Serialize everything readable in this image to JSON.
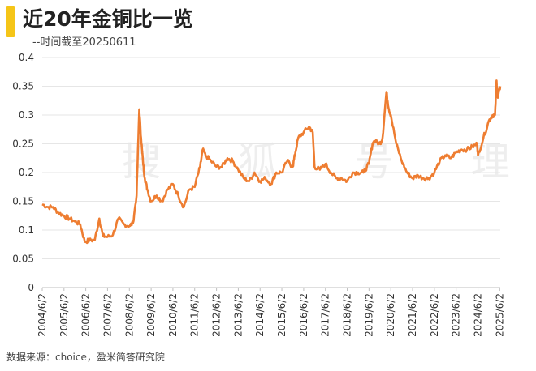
{
  "title": "近20年金铜比一览",
  "subtitle": "--时间截至20250611",
  "source": "数据来源：choice，盈米简答研究院",
  "watermark": "搜 狐 号 理",
  "colors": {
    "line": "#ee7d31",
    "accent": "#f5c518",
    "grid": "#e6e6e6"
  },
  "chart_data": {
    "type": "line",
    "title": "近20年金铜比一览",
    "xlabel": "",
    "ylabel": "",
    "ylim": [
      0,
      0.4
    ],
    "yticks": [
      0,
      0.05,
      0.1,
      0.15,
      0.2,
      0.25,
      0.3,
      0.35,
      0.4
    ],
    "ytick_labels": [
      "0",
      "0.05",
      "0.1",
      "0.15",
      "0.2",
      "0.25",
      "0.3",
      "0.35",
      "0.4"
    ],
    "xtick_labels": [
      "2004/6/2",
      "2005/6/2",
      "2006/6/2",
      "2007/6/2",
      "2008/6/2",
      "2009/6/2",
      "2010/6/2",
      "2011/6/2",
      "2012/6/2",
      "2013/6/2",
      "2014/6/2",
      "2015/6/2",
      "2016/6/2",
      "2017/6/2",
      "2018/6/2",
      "2019/6/2",
      "2020/6/2",
      "2021/6/2",
      "2022/6/2",
      "2023/6/2",
      "2024/6/2",
      "2025/6/2"
    ],
    "grid": true,
    "series": [
      {
        "x": [
          "2004-06-02",
          "2004-09-01",
          "2004-12-01",
          "2005-03-01",
          "2005-06-01",
          "2005-09-01",
          "2005-12-01",
          "2006-03-01",
          "2006-05-15",
          "2006-08-01",
          "2006-11-01",
          "2007-01-15",
          "2007-03-15",
          "2007-06-01",
          "2007-09-01",
          "2007-12-01",
          "2008-03-01",
          "2008-06-01",
          "2008-08-01",
          "2008-10-01",
          "2008-11-15",
          "2008-12-15",
          "2009-01-15",
          "2009-02-15",
          "2009-04-01",
          "2009-06-01",
          "2009-09-01",
          "2009-12-01",
          "2010-03-01",
          "2010-06-01",
          "2010-09-01",
          "2010-12-01",
          "2011-03-01",
          "2011-06-01",
          "2011-09-01",
          "2011-10-15",
          "2011-12-01",
          "2012-03-01",
          "2012-06-01",
          "2012-09-01",
          "2012-12-01",
          "2013-03-01",
          "2013-06-01",
          "2013-09-01",
          "2013-12-01",
          "2014-03-01",
          "2014-06-01",
          "2014-09-01",
          "2014-12-01",
          "2015-03-01",
          "2015-06-01",
          "2015-09-01",
          "2015-12-01",
          "2016-01-15",
          "2016-03-01",
          "2016-06-01",
          "2016-09-01",
          "2016-11-01",
          "2016-12-01",
          "2017-03-01",
          "2017-06-01",
          "2017-09-01",
          "2017-12-01",
          "2018-03-01",
          "2018-06-01",
          "2018-09-01",
          "2018-12-01",
          "2019-03-01",
          "2019-06-01",
          "2019-08-01",
          "2019-09-01",
          "2019-12-01",
          "2020-01-15",
          "2020-03-20",
          "2020-05-01",
          "2020-06-01",
          "2020-09-01",
          "2020-12-01",
          "2021-03-01",
          "2021-06-01",
          "2021-09-01",
          "2021-12-01",
          "2022-03-01",
          "2022-06-01",
          "2022-09-01",
          "2022-12-01",
          "2023-03-01",
          "2023-06-01",
          "2023-09-01",
          "2023-12-01",
          "2024-03-01",
          "2024-05-20",
          "2024-06-01",
          "2024-09-01",
          "2024-12-01",
          "2025-02-01",
          "2025-03-15",
          "2025-04-10",
          "2025-05-01",
          "2025-06-11"
        ],
        "values": [
          0.145,
          0.14,
          0.14,
          0.13,
          0.125,
          0.12,
          0.115,
          0.11,
          0.08,
          0.082,
          0.083,
          0.12,
          0.09,
          0.088,
          0.092,
          0.12,
          0.11,
          0.107,
          0.112,
          0.16,
          0.31,
          0.26,
          0.22,
          0.19,
          0.17,
          0.15,
          0.16,
          0.15,
          0.17,
          0.18,
          0.16,
          0.14,
          0.17,
          0.175,
          0.21,
          0.24,
          0.23,
          0.22,
          0.21,
          0.21,
          0.225,
          0.22,
          0.205,
          0.19,
          0.185,
          0.2,
          0.185,
          0.19,
          0.18,
          0.2,
          0.2,
          0.22,
          0.21,
          0.235,
          0.26,
          0.27,
          0.28,
          0.27,
          0.21,
          0.205,
          0.215,
          0.2,
          0.19,
          0.19,
          0.185,
          0.2,
          0.2,
          0.2,
          0.215,
          0.25,
          0.255,
          0.25,
          0.26,
          0.34,
          0.31,
          0.3,
          0.25,
          0.22,
          0.2,
          0.19,
          0.195,
          0.19,
          0.19,
          0.2,
          0.22,
          0.23,
          0.225,
          0.235,
          0.24,
          0.24,
          0.245,
          0.25,
          0.23,
          0.26,
          0.29,
          0.3,
          0.3,
          0.36,
          0.33,
          0.35
        ]
      }
    ]
  }
}
